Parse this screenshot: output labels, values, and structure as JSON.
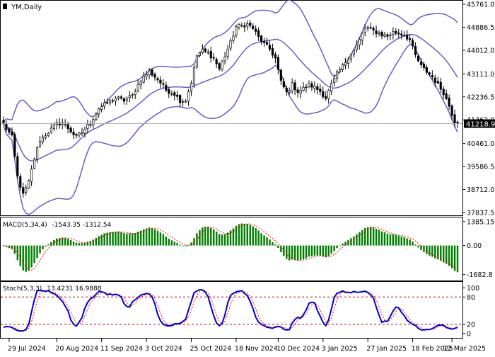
{
  "chart_data": [
    {
      "type": "candlestick",
      "title": "YM,Daily",
      "current_price": "41218.9",
      "current_value": 41218.9,
      "ylim": [
        37837.5,
        45761.0
      ],
      "y_ticks": [
        "45761.0",
        "44886.5",
        "44012.0",
        "43111.0",
        "42236.5",
        "41362.0",
        "40461.0",
        "39586.5",
        "38712.0",
        "37837.5"
      ],
      "y_tick_values": [
        45761.0,
        44886.5,
        44012.0,
        43111.0,
        42236.5,
        41362.0,
        40461.0,
        39586.5,
        38712.0,
        37837.5
      ],
      "x_ticks": [
        "29 Jul 2024",
        "20 Aug 2024",
        "11 Sep 2024",
        "3 Oct 2024",
        "25 Oct 2024",
        "18 Nov 2024",
        "10 Dec 2024",
        "3 Jan 2025",
        "27 Jan 2025",
        "18 Feb 2025",
        "12 Mar 2025"
      ],
      "x_tick_bars": [
        2,
        19,
        35,
        51,
        67,
        83,
        98,
        114,
        130,
        146,
        160
      ],
      "bar_count": 163,
      "close_anchors": [
        [
          0,
          41200
        ],
        [
          3,
          40700
        ],
        [
          5,
          39200
        ],
        [
          7,
          38500
        ],
        [
          9,
          39000
        ],
        [
          11,
          39900
        ],
        [
          13,
          40600
        ],
        [
          16,
          40900
        ],
        [
          19,
          41200
        ],
        [
          21,
          41250
        ],
        [
          23,
          41050
        ],
        [
          26,
          40700
        ],
        [
          28,
          40900
        ],
        [
          31,
          41250
        ],
        [
          34,
          41800
        ],
        [
          37,
          42000
        ],
        [
          40,
          42200
        ],
        [
          43,
          42100
        ],
        [
          46,
          42300
        ],
        [
          49,
          42900
        ],
        [
          52,
          43200
        ],
        [
          55,
          42900
        ],
        [
          58,
          42500
        ],
        [
          61,
          42350
        ],
        [
          63,
          42100
        ],
        [
          65,
          42100
        ],
        [
          67,
          42800
        ],
        [
          69,
          43800
        ],
        [
          71,
          44000
        ],
        [
          73,
          43900
        ],
        [
          75,
          43700
        ],
        [
          77,
          43300
        ],
        [
          79,
          43800
        ],
        [
          81,
          44300
        ],
        [
          83,
          44900
        ],
        [
          85,
          44950
        ],
        [
          87,
          45000
        ],
        [
          89,
          44850
        ],
        [
          91,
          44500
        ],
        [
          93,
          44250
        ],
        [
          95,
          44050
        ],
        [
          97,
          43700
        ],
        [
          99,
          42800
        ],
        [
          101,
          42400
        ],
        [
          103,
          42700
        ],
        [
          105,
          42450
        ],
        [
          107,
          42550
        ],
        [
          109,
          42700
        ],
        [
          111,
          42600
        ],
        [
          113,
          42450
        ],
        [
          115,
          42200
        ],
        [
          117,
          42700
        ],
        [
          119,
          43100
        ],
        [
          121,
          43400
        ],
        [
          123,
          43750
        ],
        [
          125,
          44000
        ],
        [
          127,
          44400
        ],
        [
          129,
          44850
        ],
        [
          131,
          44800
        ],
        [
          133,
          44700
        ],
        [
          135,
          44600
        ],
        [
          137,
          44550
        ],
        [
          139,
          44700
        ],
        [
          141,
          44650
        ],
        [
          143,
          44600
        ],
        [
          145,
          44400
        ],
        [
          147,
          43800
        ],
        [
          149,
          43400
        ],
        [
          151,
          43200
        ],
        [
          153,
          43000
        ],
        [
          155,
          42700
        ],
        [
          157,
          42400
        ],
        [
          159,
          41900
        ],
        [
          161,
          41300
        ],
        [
          162,
          41220
        ]
      ],
      "indicators": [
        "Bollinger Bands"
      ]
    },
    {
      "type": "histogram",
      "title": "MACD(5,34,4)",
      "values_text": "-1543.35 -1312.54",
      "macd_last": -1543.35,
      "signal_last": -1312.54,
      "ylim": [
        -1900,
        1500
      ],
      "y_ticks": [
        "1385.15",
        "0.00",
        "-1682.8"
      ],
      "y_tick_values": [
        1385.15,
        0.0,
        -1682.8
      ]
    },
    {
      "type": "line",
      "title": "Stoch(5,3,3)",
      "values_text": "13.4231 16.9888",
      "main_last": 13.4231,
      "signal_last": 16.9888,
      "ylim": [
        -5,
        110
      ],
      "y_ticks": [
        "100",
        "80",
        "20",
        "0"
      ],
      "y_tick_values": [
        100,
        80,
        20,
        0
      ],
      "levels": [
        80,
        20
      ]
    }
  ],
  "colors": {
    "background": "#ffffff",
    "frame": "#000000",
    "candle_up_body": "#ffffff",
    "candle_down_body": "#000000",
    "bollinger": "#6a5acd",
    "macd_histogram": "#008000",
    "macd_signal": "#ff0000",
    "stoch_main": "#0000cd",
    "stoch_signal": "#ff0000",
    "price_label_bg": "#000000",
    "price_label_text": "#ffffff"
  }
}
